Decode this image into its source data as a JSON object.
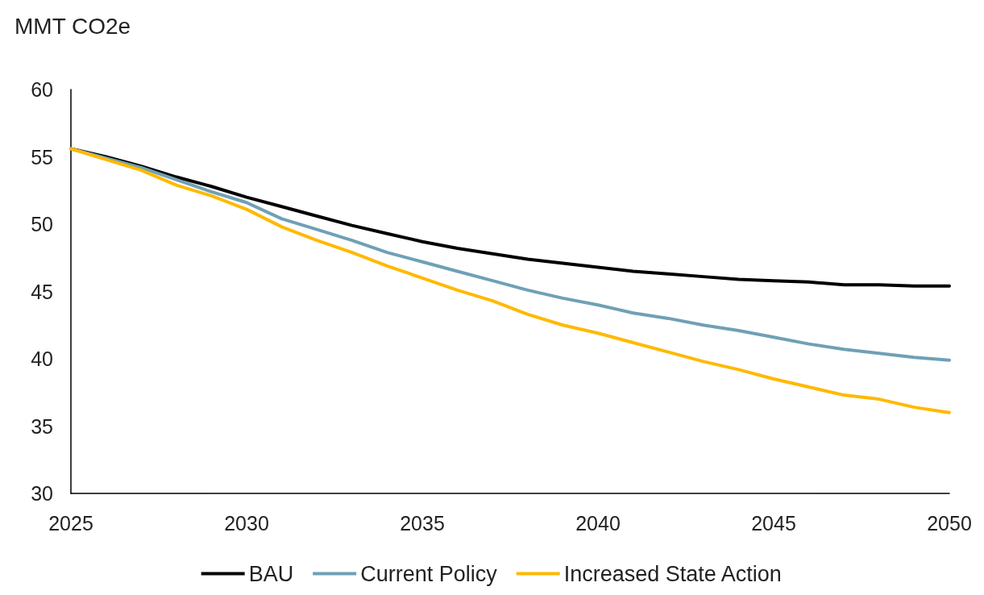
{
  "chart_data": {
    "type": "line",
    "ylabel": "MMT CO2e",
    "x": [
      2025,
      2026,
      2027,
      2028,
      2029,
      2030,
      2031,
      2032,
      2033,
      2034,
      2035,
      2036,
      2037,
      2038,
      2039,
      2040,
      2041,
      2042,
      2043,
      2044,
      2045,
      2046,
      2047,
      2048,
      2049,
      2050
    ],
    "series": [
      {
        "name": "BAU",
        "color": "#000000",
        "values": [
          55.6,
          55.0,
          54.3,
          53.5,
          52.8,
          52.0,
          51.3,
          50.6,
          49.9,
          49.3,
          48.7,
          48.2,
          47.8,
          47.4,
          47.1,
          46.8,
          46.5,
          46.3,
          46.1,
          45.9,
          45.8,
          45.7,
          45.5,
          45.5,
          45.4,
          45.4
        ]
      },
      {
        "name": "Current Policy",
        "color": "#6fa0b6",
        "values": [
          55.6,
          54.9,
          54.2,
          53.3,
          52.4,
          51.6,
          50.4,
          49.6,
          48.8,
          47.9,
          47.2,
          46.5,
          45.8,
          45.1,
          44.5,
          44.0,
          43.4,
          43.0,
          42.5,
          42.1,
          41.6,
          41.1,
          40.7,
          40.4,
          40.1,
          39.9
        ]
      },
      {
        "name": "Increased State Action",
        "color": "#ffb900",
        "values": [
          55.6,
          54.8,
          54.0,
          52.9,
          52.1,
          51.1,
          49.8,
          48.8,
          47.9,
          46.9,
          46.0,
          45.1,
          44.3,
          43.3,
          42.5,
          41.9,
          41.2,
          40.5,
          39.8,
          39.2,
          38.5,
          37.9,
          37.3,
          37.0,
          36.4,
          36.0
        ]
      }
    ],
    "xlim": [
      2025,
      2050
    ],
    "xticks": [
      2025,
      2030,
      2035,
      2040,
      2045,
      2050
    ],
    "ylim": [
      30,
      60
    ],
    "yticks": [
      30,
      35,
      40,
      45,
      50,
      55,
      60
    ],
    "grid": false,
    "legend": "bottom",
    "marker": "none",
    "line_style": "solid"
  }
}
